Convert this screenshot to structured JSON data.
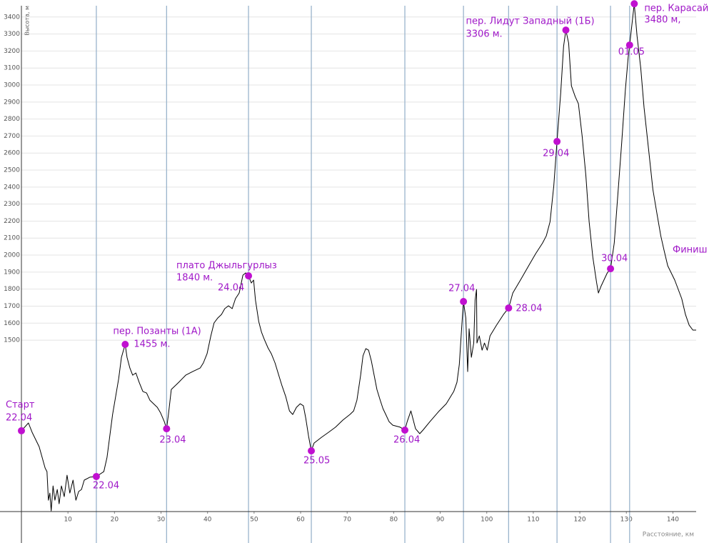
{
  "chart_data": {
    "type": "line",
    "ylabel": "Высота, м",
    "xlabel": "Расстояние, км",
    "end_label": "Финиш",
    "color": "#000000",
    "marker_color": "#c010d0",
    "text_color": "#a018c8",
    "day_line_color": "#9ab4cc",
    "grid": true,
    "xlim": [
      0,
      145
    ],
    "ylim": [
      492,
      3500
    ],
    "xticks": [
      10,
      20,
      30,
      40,
      50,
      60,
      70,
      80,
      90,
      100,
      110,
      120,
      130,
      140
    ],
    "yticks": [
      1500,
      1600,
      1700,
      1800,
      1900,
      2000,
      2100,
      2200,
      2300,
      2400,
      2500,
      2600,
      2700,
      2800,
      2900,
      3000,
      3100,
      3200,
      3300,
      3400
    ],
    "x": [
      0,
      1.5,
      2.3,
      3.8,
      5.1,
      5.5,
      5.8,
      6.1,
      6.4,
      6.8,
      7.2,
      7.7,
      8.1,
      8.6,
      9.2,
      9.8,
      10.4,
      11.1,
      11.7,
      12.3,
      12.9,
      13.5,
      14.7,
      16.1,
      17.7,
      18.4,
      19.0,
      19.6,
      20.9,
      21.5,
      22.3,
      22.7,
      23.3,
      23.9,
      24.6,
      25.3,
      26.1,
      26.9,
      27.6,
      28.4,
      29.2,
      29.9,
      30.7,
      31.2,
      31.6,
      32.2,
      33.0,
      33.8,
      35.3,
      36.8,
      38.4,
      39.1,
      39.9,
      40.7,
      41.4,
      42.2,
      43.0,
      43.7,
      44.5,
      45.3,
      46.0,
      46.8,
      47.6,
      48.2,
      48.8,
      49.4,
      49.9,
      50.3,
      51.0,
      51.6,
      52.2,
      53.0,
      53.7,
      54.5,
      55.3,
      56.0,
      56.8,
      57.6,
      58.3,
      59.1,
      59.9,
      60.6,
      61.1,
      61.7,
      62.3,
      62.9,
      64.5,
      66.0,
      67.5,
      69.1,
      70.6,
      71.4,
      72.1,
      72.9,
      73.4,
      74.0,
      74.6,
      75.2,
      75.8,
      76.4,
      77.1,
      77.7,
      78.3,
      79.0,
      79.8,
      81.4,
      82.4,
      82.9,
      83.7,
      84.1,
      84.7,
      85.6,
      86.3,
      87.8,
      89.8,
      91.3,
      92.9,
      93.6,
      94.1,
      94.6,
      95.0,
      95.5,
      95.9,
      96.2,
      96.7,
      97.2,
      97.5,
      97.8,
      97.9,
      98.4,
      99.0,
      99.5,
      100.1,
      100.7,
      102.1,
      103.6,
      104.7,
      105.6,
      107.4,
      109.0,
      110.5,
      112.0,
      112.8,
      113.6,
      114.4,
      115.1,
      115.9,
      116.5,
      117.0,
      117.6,
      118.2,
      119.0,
      119.7,
      120.5,
      121.3,
      122.0,
      122.8,
      123.6,
      124.0,
      124.6,
      125.9,
      126.6,
      127.4,
      128.2,
      129.0,
      129.8,
      130.4,
      130.7,
      131.1,
      131.7,
      132.3,
      133.1,
      133.8,
      134.8,
      135.7,
      136.6,
      137.4,
      138.1,
      138.9,
      140.4,
      141.9,
      142.7,
      143.5,
      144.3,
      145.0
    ],
    "values": [
      967,
      1013,
      958,
      874,
      748,
      727,
      559,
      601,
      496,
      643,
      559,
      622,
      538,
      643,
      580,
      706,
      601,
      677,
      559,
      610,
      622,
      677,
      694,
      698,
      727,
      811,
      937,
      1063,
      1273,
      1399,
      1475,
      1399,
      1336,
      1294,
      1307,
      1252,
      1198,
      1189,
      1147,
      1126,
      1105,
      1072,
      1021,
      979,
      1063,
      1210,
      1231,
      1252,
      1294,
      1315,
      1336,
      1366,
      1420,
      1525,
      1601,
      1630,
      1651,
      1685,
      1702,
      1685,
      1744,
      1777,
      1882,
      1895,
      1878,
      1836,
      1853,
      1735,
      1609,
      1546,
      1504,
      1454,
      1420,
      1366,
      1294,
      1231,
      1168,
      1084,
      1063,
      1105,
      1126,
      1114,
      1042,
      937,
      849,
      895,
      929,
      958,
      988,
      1030,
      1063,
      1084,
      1147,
      1294,
      1408,
      1450,
      1441,
      1378,
      1294,
      1210,
      1147,
      1097,
      1063,
      1021,
      1000,
      988,
      971,
      1021,
      1084,
      1042,
      979,
      950,
      971,
      1021,
      1084,
      1126,
      1198,
      1252,
      1357,
      1567,
      1727,
      1630,
      1315,
      1567,
      1399,
      1483,
      1735,
      1798,
      1483,
      1525,
      1441,
      1483,
      1441,
      1525,
      1588,
      1651,
      1689,
      1777,
      1861,
      1937,
      2008,
      2071,
      2113,
      2197,
      2407,
      2668,
      2953,
      3226,
      3323,
      3247,
      2995,
      2932,
      2890,
      2701,
      2470,
      2197,
      1987,
      1840,
      1777,
      1819,
      1895,
      1920,
      2071,
      2365,
      2659,
      2974,
      3163,
      3235,
      3331,
      3478,
      3289,
      3100,
      2869,
      2617,
      2386,
      2239,
      2113,
      2029,
      1937,
      1853,
      1744,
      1651,
      1588,
      1559,
      1559
    ],
    "waypoints": [
      {
        "x": 0,
        "y": 967,
        "line": false,
        "text": [
          "Старт",
          "22.04"
        ]
      },
      {
        "x": 16.1,
        "y": 698,
        "line": true,
        "text": [
          "22.04"
        ]
      },
      {
        "x": 22.3,
        "y": 1475,
        "line": false,
        "text": [
          "пер. Позанты (1А)",
          "1455 м."
        ]
      },
      {
        "x": 31.2,
        "y": 979,
        "line": true,
        "text": [
          "23.04"
        ]
      },
      {
        "x": 48.8,
        "y": 1878,
        "line": true,
        "text": [
          "плато Джыльгурлыз",
          "1840 м.",
          "24.04"
        ]
      },
      {
        "x": 62.3,
        "y": 849,
        "line": true,
        "text": [
          "25.05"
        ]
      },
      {
        "x": 82.4,
        "y": 971,
        "line": true,
        "text": [
          "26.04"
        ]
      },
      {
        "x": 95.0,
        "y": 1727,
        "line": true,
        "text": [
          "27.04"
        ]
      },
      {
        "x": 104.7,
        "y": 1689,
        "line": true,
        "text": [
          "28.04"
        ]
      },
      {
        "x": 115.1,
        "y": 2668,
        "line": true,
        "text": [
          "29.04"
        ]
      },
      {
        "x": 117.0,
        "y": 3323,
        "line": false,
        "text": [
          "пер. Лидут Западный (1Б)",
          "3306 м."
        ]
      },
      {
        "x": 126.6,
        "y": 1920,
        "line": true,
        "text": [
          "30.04"
        ]
      },
      {
        "x": 130.7,
        "y": 3235,
        "line": true,
        "text": [
          "01.05"
        ]
      },
      {
        "x": 131.7,
        "y": 3478,
        "line": false,
        "text": [
          "пер. Карасай",
          "3480 м,"
        ]
      }
    ]
  }
}
